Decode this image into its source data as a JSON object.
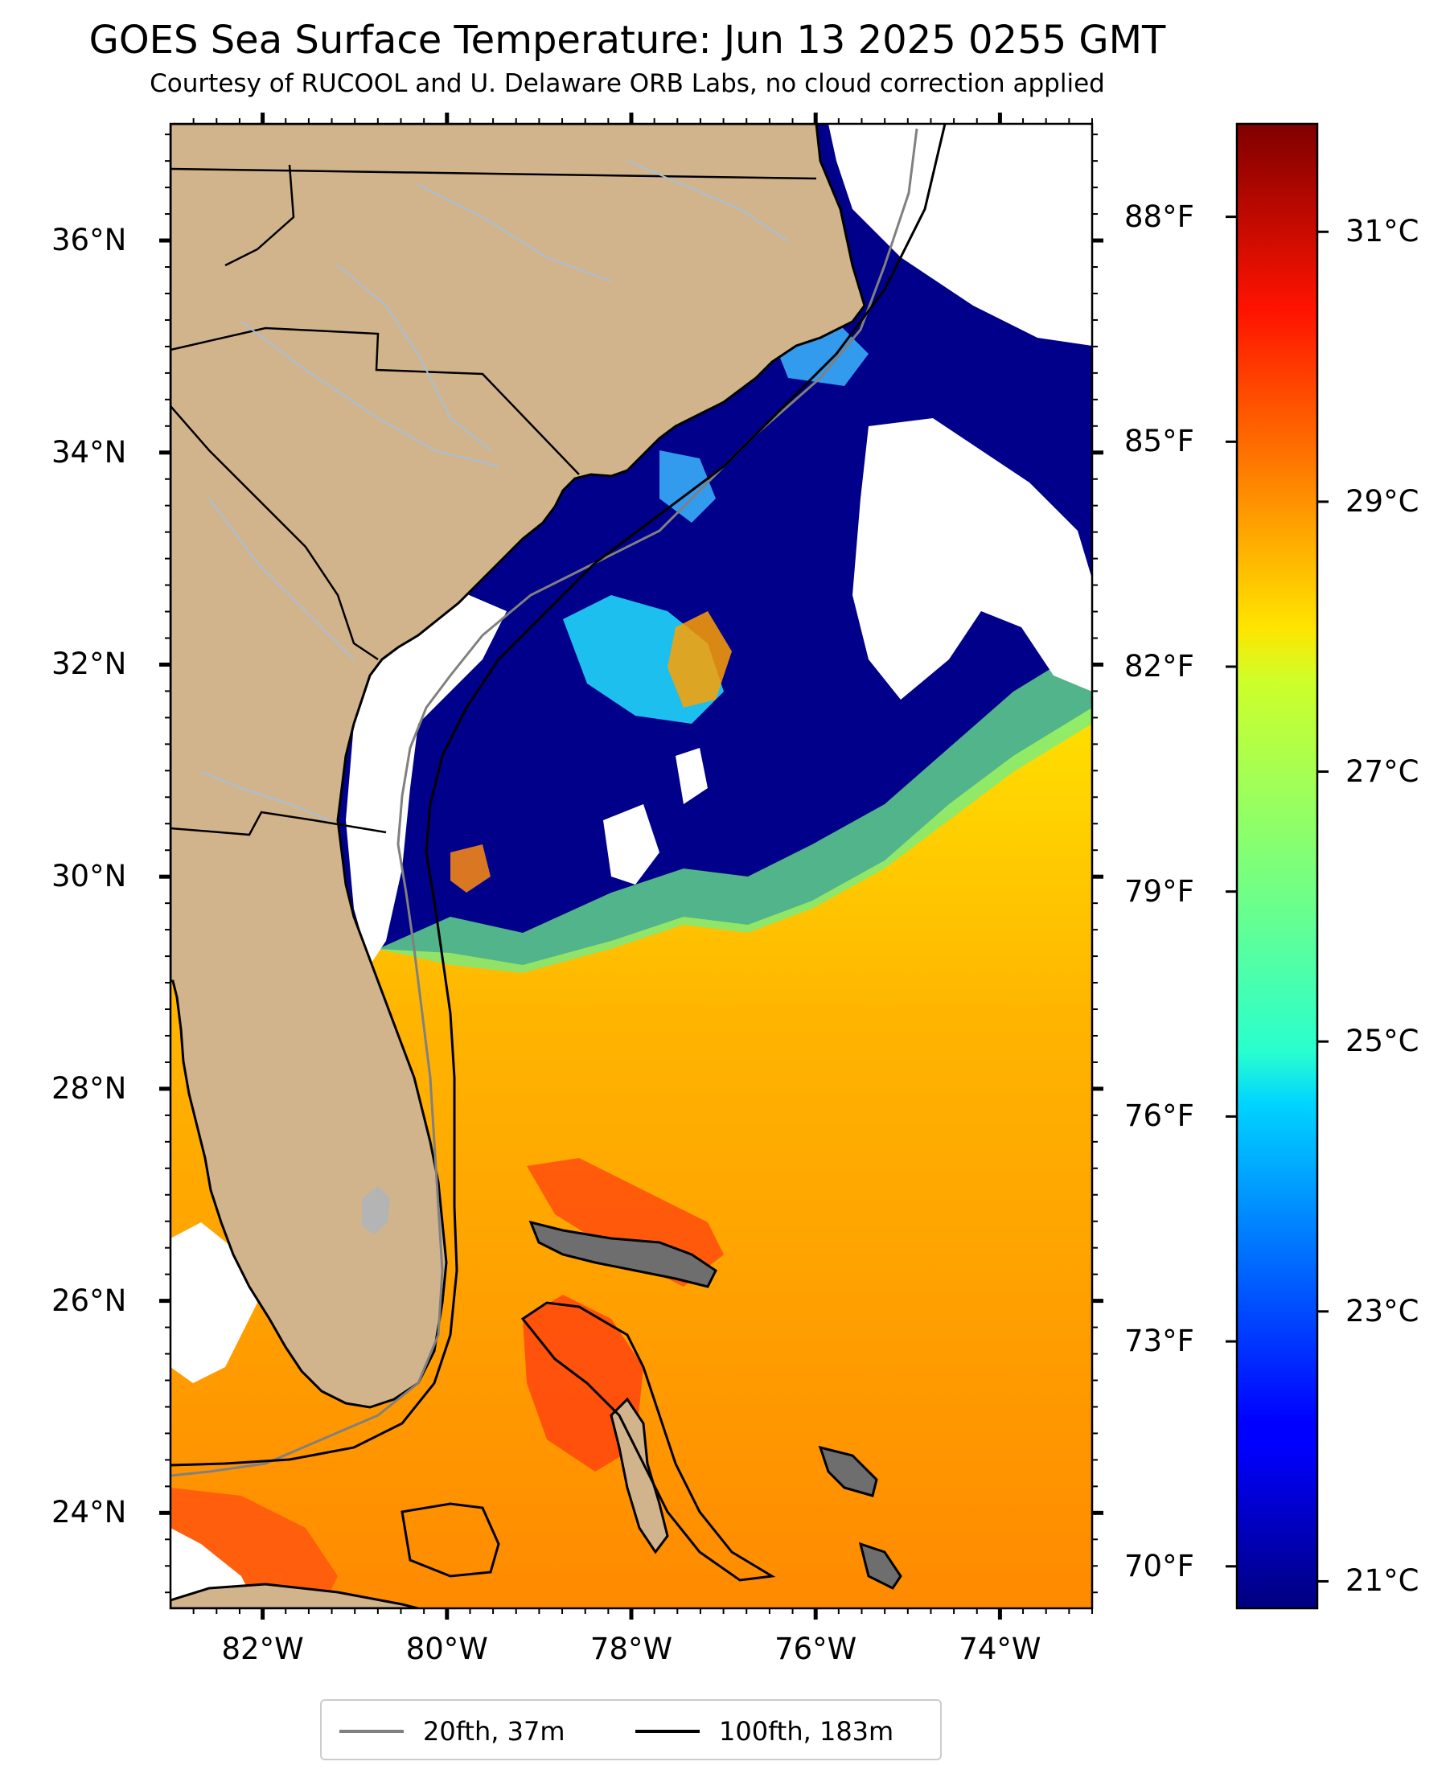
{
  "title": "GOES Sea Surface Temperature: Jun 13 2025 0255 GMT",
  "subtitle": "Courtesy of RUCOOL and U. Delaware ORB Labs, no cloud correction applied",
  "map": {
    "lon_range": [
      -83.0,
      -73.0
    ],
    "lat_range": [
      23.1,
      37.1
    ],
    "land_color": "#d2b48c",
    "cloud_color": "#ffffff",
    "river_color": "#a7bfd8",
    "lat_ticks": [
      {
        "value": 24,
        "label": "24°N"
      },
      {
        "value": 26,
        "label": "26°N"
      },
      {
        "value": 28,
        "label": "28°N"
      },
      {
        "value": 30,
        "label": "30°N"
      },
      {
        "value": 32,
        "label": "32°N"
      },
      {
        "value": 34,
        "label": "34°N"
      },
      {
        "value": 36,
        "label": "36°N"
      }
    ],
    "lon_ticks": [
      {
        "value": -82,
        "label": "82°W"
      },
      {
        "value": -80,
        "label": "80°W"
      },
      {
        "value": -78,
        "label": "78°W"
      },
      {
        "value": -76,
        "label": "76°W"
      },
      {
        "value": -74,
        "label": "74°W"
      }
    ]
  },
  "colorbar": {
    "colormap": "jet",
    "range_c": [
      20.8,
      31.8
    ],
    "celsius_ticks": [
      {
        "value": 21,
        "label": "21°C"
      },
      {
        "value": 23,
        "label": "23°C"
      },
      {
        "value": 25,
        "label": "25°C"
      },
      {
        "value": 27,
        "label": "27°C"
      },
      {
        "value": 29,
        "label": "29°C"
      },
      {
        "value": 31,
        "label": "31°C"
      }
    ],
    "fahrenheit_ticks": [
      {
        "value": 70,
        "label": "70°F"
      },
      {
        "value": 73,
        "label": "73°F"
      },
      {
        "value": 76,
        "label": "76°F"
      },
      {
        "value": 79,
        "label": "79°F"
      },
      {
        "value": 82,
        "label": "82°F"
      },
      {
        "value": 85,
        "label": "85°F"
      },
      {
        "value": 88,
        "label": "88°F"
      }
    ]
  },
  "legend": {
    "items": [
      {
        "label": "20fth, 37m",
        "color": "#808080"
      },
      {
        "label": "100fth, 183m",
        "color": "#000000"
      }
    ]
  }
}
